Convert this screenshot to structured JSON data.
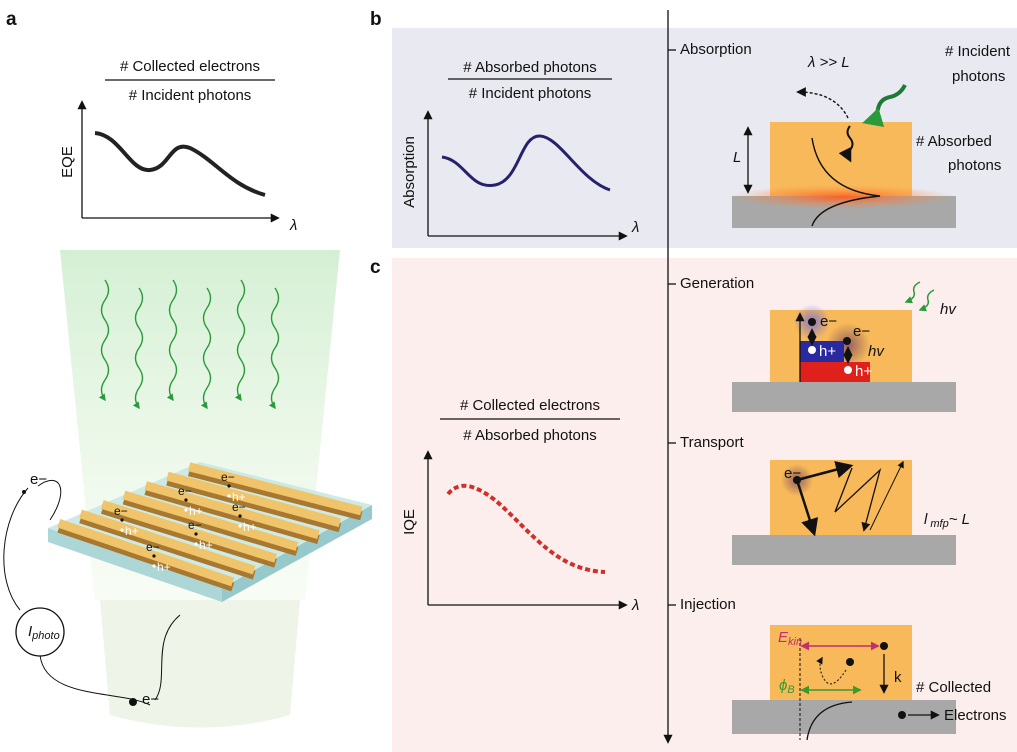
{
  "panel_a": {
    "label": "a",
    "ratio": {
      "numerator": "# Collected electrons",
      "denominator": "# Incident photons"
    },
    "y_axis": "EQE",
    "x_axis": "λ",
    "device": {
      "current": {
        "symbol": "I",
        "subscript": "photo"
      },
      "electron": "e−",
      "hole": "h+"
    }
  },
  "panel_b": {
    "label": "b",
    "ratio": {
      "numerator": "# Absorbed photons",
      "denominator": "# Incident photons"
    },
    "y_axis": "Absorption",
    "x_axis": "λ"
  },
  "panel_c": {
    "label": "c",
    "ratio": {
      "numerator": "# Collected electrons",
      "denominator": "# Absorbed photons"
    },
    "y_axis": "IQE",
    "x_axis": "λ"
  },
  "stages": [
    "Absorption",
    "Generation",
    "Transport",
    "Injection"
  ],
  "absorption_diagram": {
    "condition": "λ >> L",
    "incident": [
      "# Incident",
      "photons"
    ],
    "thickness": "L",
    "absorbed": [
      "# Absorbed",
      "photons"
    ]
  },
  "generation_diagram": {
    "electron": "e−",
    "hole": "h+",
    "photon": "hv"
  },
  "transport_diagram": {
    "electron": "e−",
    "path": {
      "symbol": "l",
      "subscript": "mfp",
      "relation": "~ L"
    }
  },
  "injection_diagram": {
    "energy": {
      "symbol": "E",
      "subscript": "kin"
    },
    "barrier": {
      "symbol": "ϕ",
      "subscript": "B"
    },
    "rate": "k",
    "collected": [
      "# Collected",
      "Electrons"
    ]
  }
}
